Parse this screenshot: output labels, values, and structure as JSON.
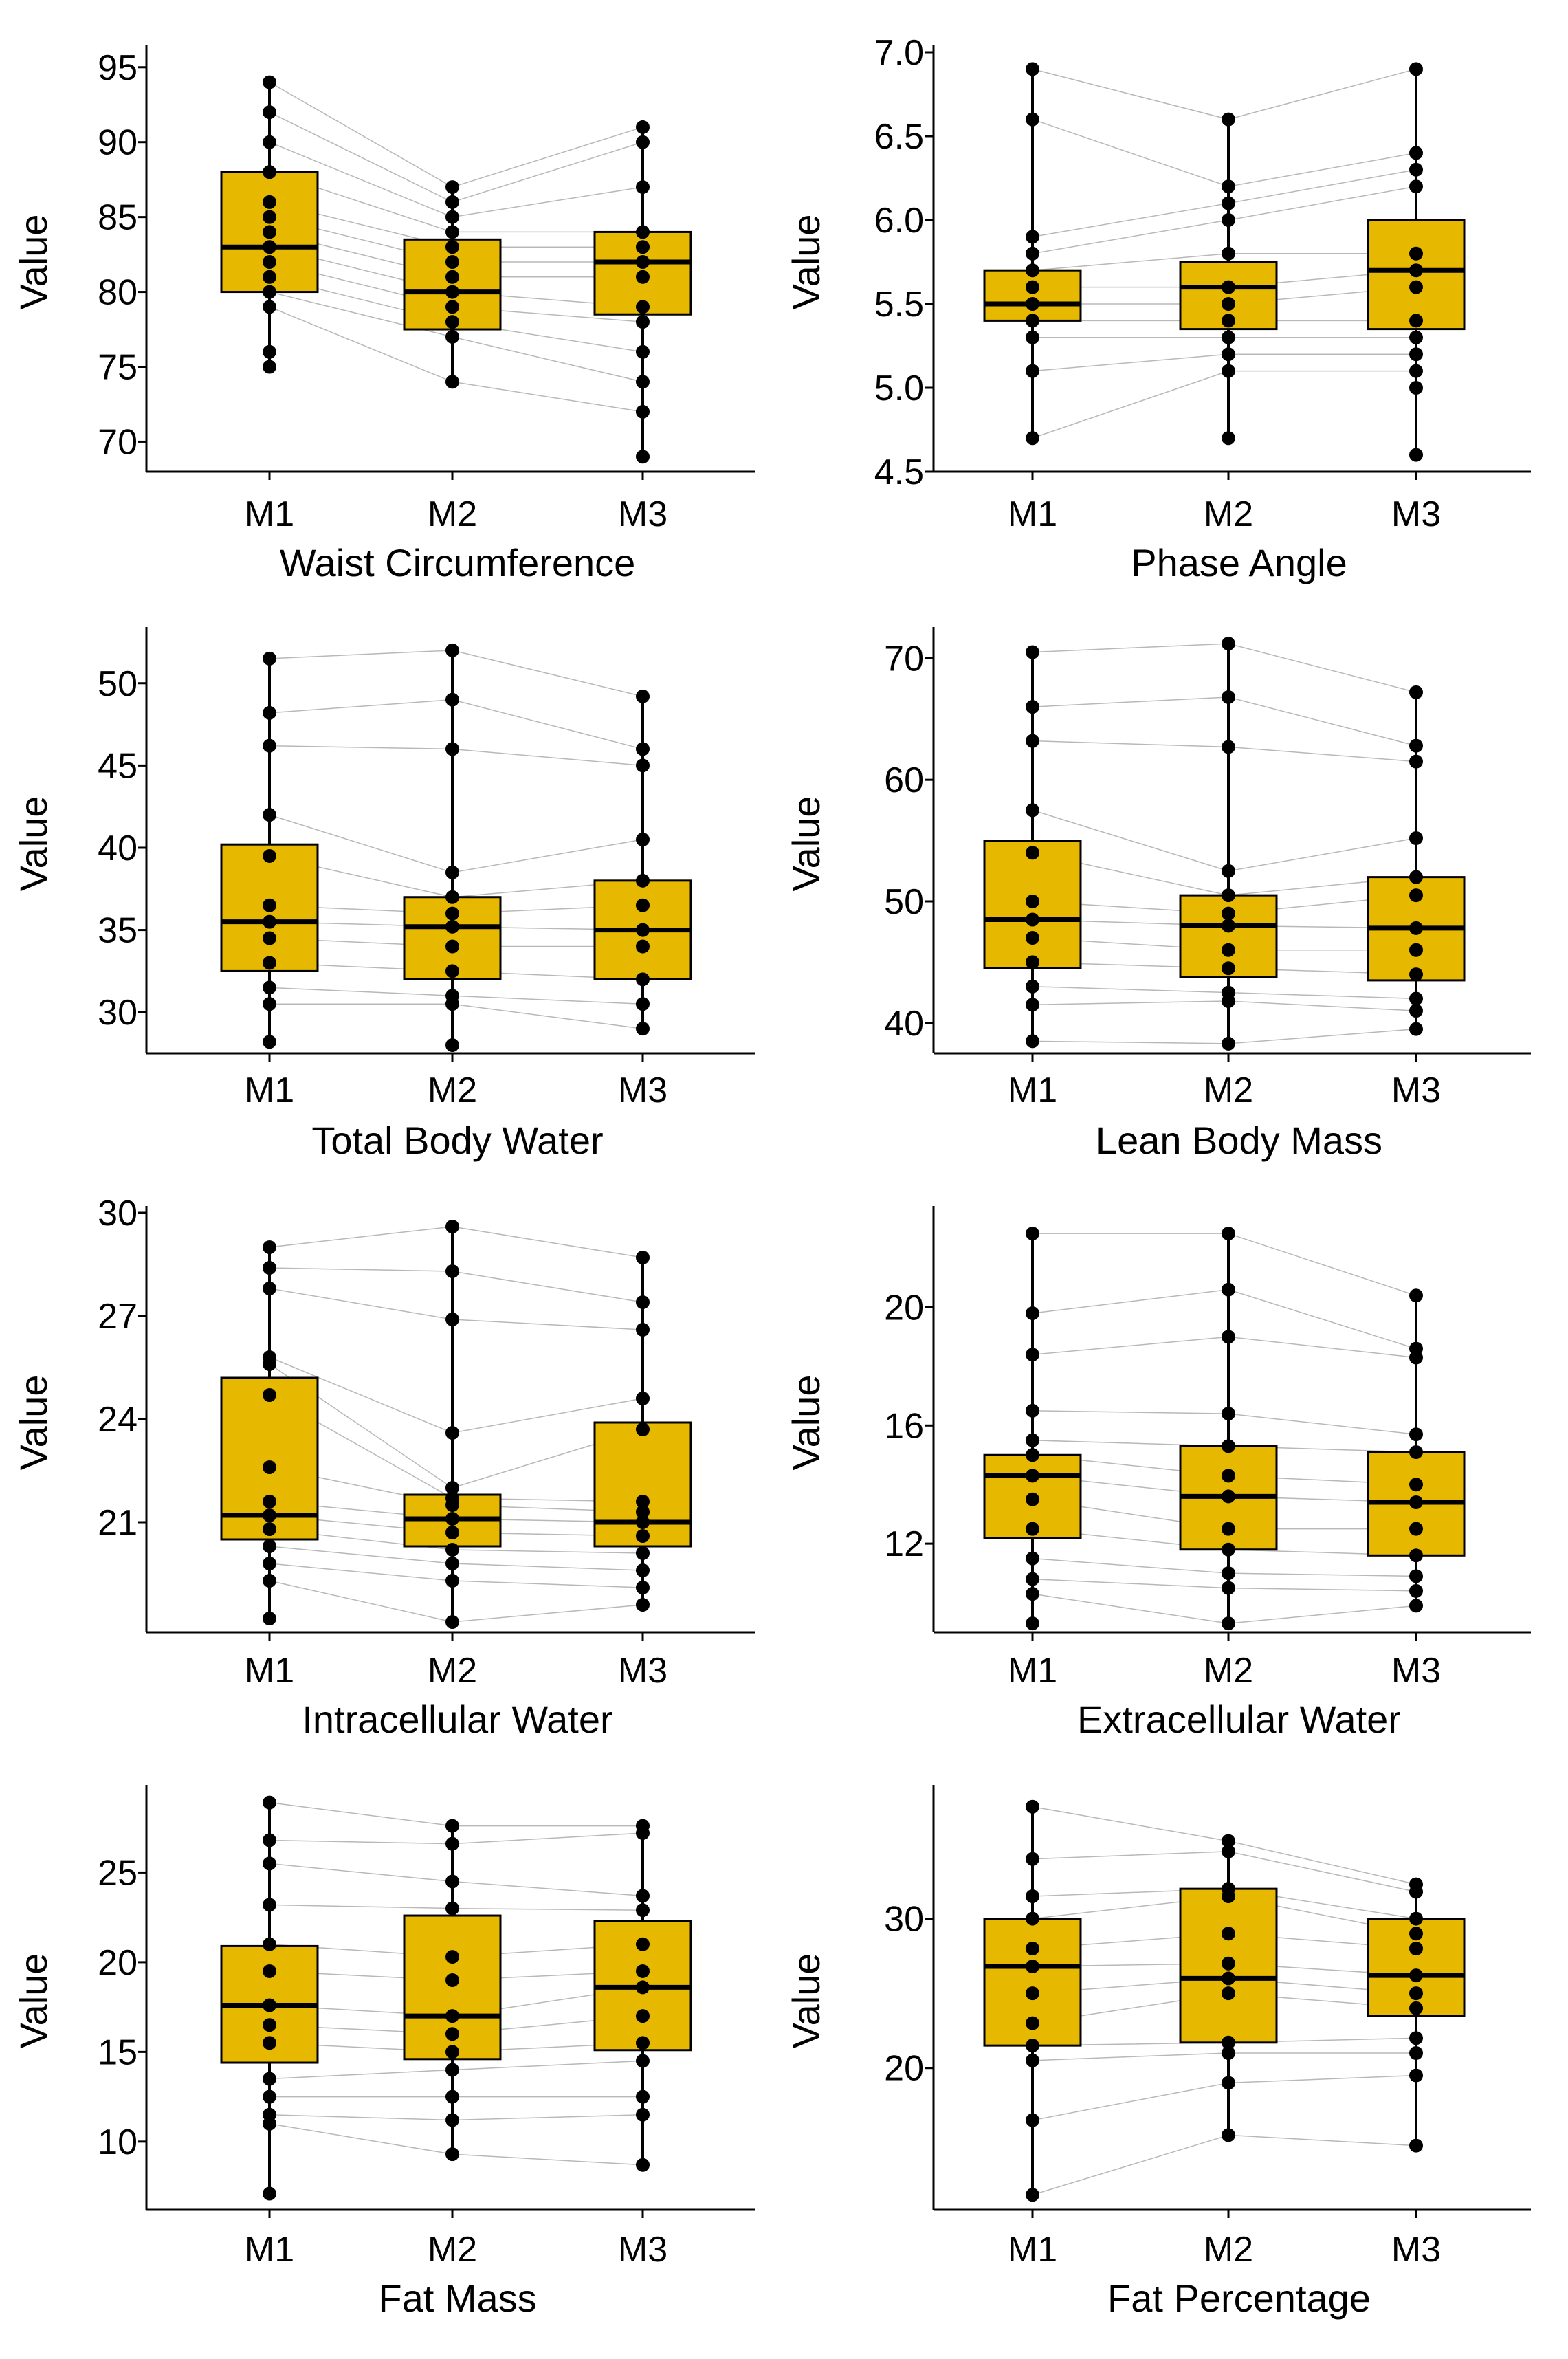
{
  "figure": {
    "layout": "4 rows x 2 columns of box plots with paired lines",
    "box_fill": "#E7B800",
    "box_stroke": "#000000",
    "point_color": "#000000",
    "pair_line_color": "#9a9a9a"
  },
  "chart_data": [
    {
      "type": "box",
      "title": "Waist Circumference",
      "xlabel": "Waist Circumference",
      "ylabel": "Value",
      "categories": [
        "M1",
        "M2",
        "M3"
      ],
      "ylim": [
        68,
        96
      ],
      "yticks": [
        70,
        75,
        80,
        85,
        90,
        95
      ],
      "ytick_labels": [
        "70",
        "75",
        "80",
        "85",
        "90",
        "95"
      ],
      "boxes": [
        {
          "group": "M1",
          "whisker_low": 75,
          "q1": 80,
          "median": 83,
          "q3": 88,
          "whisker_high": 94
        },
        {
          "group": "M2",
          "whisker_low": 74,
          "q1": 77.5,
          "median": 80,
          "q3": 83.5,
          "whisker_high": 87
        },
        {
          "group": "M3",
          "whisker_low": 69,
          "q1": 78.5,
          "median": 82,
          "q3": 84,
          "whisker_high": 91
        }
      ],
      "points": {
        "M1": [
          94,
          92,
          90,
          88,
          86,
          85,
          84,
          83,
          82,
          81,
          80,
          79,
          76,
          75
        ],
        "M2": [
          87,
          86,
          85,
          84,
          83,
          82,
          81,
          80,
          79,
          78,
          77,
          74
        ],
        "M3": [
          91,
          90,
          87,
          84,
          83,
          82,
          81,
          79,
          78,
          76,
          74,
          72,
          69
        ]
      }
    },
    {
      "type": "box",
      "title": "Phase Angle",
      "xlabel": "Phase Angle",
      "ylabel": "Value",
      "categories": [
        "M1",
        "M2",
        "M3"
      ],
      "ylim": [
        4.5,
        7.0
      ],
      "yticks": [
        4.5,
        5.0,
        5.5,
        6.0,
        6.5,
        7.0
      ],
      "ytick_labels": [
        "4.5",
        "5.0",
        "5.5",
        "6.0",
        "6.5",
        "7.0"
      ],
      "boxes": [
        {
          "group": "M1",
          "whisker_low": 4.7,
          "q1": 5.4,
          "median": 5.5,
          "q3": 5.7,
          "whisker_high": 6.9
        },
        {
          "group": "M2",
          "whisker_low": 4.7,
          "q1": 5.35,
          "median": 5.6,
          "q3": 5.75,
          "whisker_high": 6.6
        },
        {
          "group": "M3",
          "whisker_low": 4.6,
          "q1": 5.35,
          "median": 5.7,
          "q3": 6.0,
          "whisker_high": 6.9
        }
      ],
      "points": {
        "M1": [
          6.9,
          6.6,
          5.9,
          5.8,
          5.7,
          5.6,
          5.5,
          5.4,
          5.3,
          5.1,
          4.7
        ],
        "M2": [
          6.6,
          6.2,
          6.1,
          6.0,
          5.8,
          5.6,
          5.5,
          5.4,
          5.3,
          5.2,
          5.1,
          4.7
        ],
        "M3": [
          6.9,
          6.4,
          6.3,
          6.2,
          5.8,
          5.7,
          5.6,
          5.4,
          5.3,
          5.2,
          5.1,
          5.0,
          4.6
        ]
      }
    },
    {
      "type": "box",
      "title": "Total Body Water",
      "xlabel": "Total Body Water",
      "ylabel": "Value",
      "categories": [
        "M1",
        "M2",
        "M3"
      ],
      "ylim": [
        27.5,
        53
      ],
      "yticks": [
        30,
        35,
        40,
        45,
        50
      ],
      "ytick_labels": [
        "30",
        "35",
        "40",
        "45",
        "50"
      ],
      "boxes": [
        {
          "group": "M1",
          "whisker_low": 28.2,
          "q1": 32.5,
          "median": 35.5,
          "q3": 40.2,
          "whisker_high": 51.5
        },
        {
          "group": "M2",
          "whisker_low": 28.0,
          "q1": 32.0,
          "median": 35.2,
          "q3": 37.0,
          "whisker_high": 52.0
        },
        {
          "group": "M3",
          "whisker_low": 29.0,
          "q1": 32.0,
          "median": 35.0,
          "q3": 38.0,
          "whisker_high": 49.2
        }
      ],
      "points": {
        "M1": [
          51.5,
          48.2,
          46.2,
          42.0,
          39.5,
          36.5,
          35.5,
          34.5,
          33.0,
          31.5,
          30.5,
          28.2
        ],
        "M2": [
          52.0,
          49.0,
          46.0,
          38.5,
          37.0,
          36.0,
          35.2,
          34.0,
          32.5,
          31.0,
          30.5,
          28.0
        ],
        "M3": [
          49.2,
          46.0,
          45.0,
          40.5,
          38.0,
          36.5,
          35.0,
          34.0,
          32.0,
          30.5,
          29.0
        ]
      }
    },
    {
      "type": "box",
      "title": "Lean Body Mass",
      "xlabel": "Lean Body Mass",
      "ylabel": "Value",
      "categories": [
        "M1",
        "M2",
        "M3"
      ],
      "ylim": [
        37.5,
        72
      ],
      "yticks": [
        40,
        50,
        60,
        70
      ],
      "ytick_labels": [
        "40",
        "50",
        "60",
        "70"
      ],
      "boxes": [
        {
          "group": "M1",
          "whisker_low": 38.5,
          "q1": 44.5,
          "median": 48.5,
          "q3": 55.0,
          "whisker_high": 70.5
        },
        {
          "group": "M2",
          "whisker_low": 38.3,
          "q1": 43.8,
          "median": 48.0,
          "q3": 50.5,
          "whisker_high": 71.2
        },
        {
          "group": "M3",
          "whisker_low": 39.5,
          "q1": 43.5,
          "median": 47.8,
          "q3": 52.0,
          "whisker_high": 67.2
        }
      ],
      "points": {
        "M1": [
          70.5,
          66.0,
          63.2,
          57.5,
          54.0,
          50.0,
          48.5,
          47.0,
          45.0,
          43.0,
          41.5,
          38.5
        ],
        "M2": [
          71.2,
          66.8,
          62.7,
          52.5,
          50.5,
          49.0,
          48.0,
          46.0,
          44.5,
          42.5,
          41.8,
          38.3
        ],
        "M3": [
          67.2,
          62.8,
          61.5,
          55.2,
          52.0,
          50.5,
          47.8,
          46.0,
          44.0,
          42.0,
          41.0,
          39.5
        ]
      }
    },
    {
      "type": "box",
      "title": "Intracellular Water",
      "xlabel": "Intracellular Water",
      "ylabel": "Value",
      "categories": [
        "M1",
        "M2",
        "M3"
      ],
      "ylim": [
        17.8,
        30
      ],
      "yticks": [
        21,
        24,
        27,
        30
      ],
      "ytick_labels": [
        "21",
        "24",
        "27",
        "30"
      ],
      "boxes": [
        {
          "group": "M1",
          "whisker_low": 18.2,
          "q1": 20.5,
          "median": 21.2,
          "q3": 25.2,
          "whisker_high": 29.0
        },
        {
          "group": "M2",
          "whisker_low": 18.1,
          "q1": 20.3,
          "median": 21.1,
          "q3": 21.8,
          "whisker_high": 29.6
        },
        {
          "group": "M3",
          "whisker_low": 18.6,
          "q1": 20.3,
          "median": 21.0,
          "q3": 23.9,
          "whisker_high": 28.7
        }
      ],
      "points": {
        "M1": [
          29.0,
          28.4,
          27.8,
          25.8,
          25.6,
          24.7,
          22.6,
          21.6,
          21.2,
          20.8,
          20.3,
          19.8,
          19.3,
          18.2
        ],
        "M2": [
          29.6,
          28.3,
          26.9,
          23.6,
          22.0,
          21.7,
          21.5,
          21.1,
          20.7,
          20.2,
          19.8,
          19.3,
          18.1
        ],
        "M3": [
          28.7,
          27.4,
          26.6,
          24.6,
          23.7,
          21.6,
          21.3,
          21.0,
          20.6,
          20.1,
          19.6,
          19.1,
          18.6
        ]
      }
    },
    {
      "type": "box",
      "title": "Extracellular Water",
      "xlabel": "Extracellular Water",
      "ylabel": "Value",
      "categories": [
        "M1",
        "M2",
        "M3"
      ],
      "ylim": [
        9.0,
        23.2
      ],
      "yticks": [
        12,
        16,
        20
      ],
      "ytick_labels": [
        "12",
        "16",
        "20"
      ],
      "boxes": [
        {
          "group": "M1",
          "whisker_low": 9.3,
          "q1": 12.2,
          "median": 14.3,
          "q3": 15.0,
          "whisker_high": 22.5
        },
        {
          "group": "M2",
          "whisker_low": 9.3,
          "q1": 11.8,
          "median": 13.6,
          "q3": 15.3,
          "whisker_high": 22.5
        },
        {
          "group": "M3",
          "whisker_low": 9.9,
          "q1": 11.6,
          "median": 13.4,
          "q3": 15.1,
          "whisker_high": 20.4
        }
      ],
      "points": {
        "M1": [
          22.5,
          19.8,
          18.4,
          16.5,
          15.5,
          15.0,
          14.3,
          13.5,
          12.5,
          11.5,
          10.8,
          10.3,
          9.3
        ],
        "M2": [
          22.5,
          20.6,
          19.0,
          16.4,
          15.3,
          14.3,
          13.6,
          12.5,
          11.8,
          11.0,
          10.5,
          9.3
        ],
        "M3": [
          20.4,
          18.6,
          18.3,
          15.7,
          15.1,
          14.0,
          13.4,
          12.5,
          11.6,
          10.9,
          10.4,
          9.9
        ]
      }
    },
    {
      "type": "box",
      "title": "Fat Mass",
      "xlabel": "Fat Mass",
      "ylabel": "Value",
      "categories": [
        "M1",
        "M2",
        "M3"
      ],
      "ylim": [
        6.2,
        29.5
      ],
      "yticks": [
        10,
        15,
        20,
        25
      ],
      "ytick_labels": [
        "10",
        "15",
        "20",
        "25"
      ],
      "boxes": [
        {
          "group": "M1",
          "whisker_low": 7.1,
          "q1": 14.4,
          "median": 17.6,
          "q3": 20.9,
          "whisker_high": 28.9
        },
        {
          "group": "M2",
          "whisker_low": 9.3,
          "q1": 14.6,
          "median": 17.0,
          "q3": 22.6,
          "whisker_high": 27.6
        },
        {
          "group": "M3",
          "whisker_low": 8.7,
          "q1": 15.1,
          "median": 18.6,
          "q3": 22.3,
          "whisker_high": 27.6
        }
      ],
      "points": {
        "M1": [
          28.9,
          26.8,
          25.5,
          23.2,
          21.0,
          19.5,
          17.6,
          16.5,
          15.5,
          13.5,
          12.5,
          11.5,
          11.0,
          7.1
        ],
        "M2": [
          27.6,
          26.6,
          24.5,
          23.0,
          20.3,
          19.0,
          17.0,
          16.0,
          15.0,
          14.0,
          12.5,
          11.2,
          9.3
        ],
        "M3": [
          27.6,
          27.2,
          23.7,
          22.9,
          21.0,
          19.5,
          18.6,
          17.0,
          15.5,
          14.5,
          12.5,
          11.5,
          8.7
        ]
      }
    },
    {
      "type": "box",
      "title": "Fat Percentage",
      "xlabel": "Fat Percentage",
      "ylabel": "Value",
      "categories": [
        "M1",
        "M2",
        "M3"
      ],
      "ylim": [
        10.5,
        38.5
      ],
      "yticks": [
        20,
        30
      ],
      "ytick_labels": [
        "20",
        "30"
      ],
      "boxes": [
        {
          "group": "M1",
          "whisker_low": 11.5,
          "q1": 21.5,
          "median": 26.8,
          "q3": 30.0,
          "whisker_high": 37.5
        },
        {
          "group": "M2",
          "whisker_low": 15.5,
          "q1": 21.7,
          "median": 26.0,
          "q3": 32.0,
          "whisker_high": 35.2
        },
        {
          "group": "M3",
          "whisker_low": 14.8,
          "q1": 23.5,
          "median": 26.2,
          "q3": 30.0,
          "whisker_high": 32.3
        }
      ],
      "points": {
        "M1": [
          37.5,
          34.0,
          31.5,
          30.0,
          28.0,
          26.8,
          25.0,
          23.0,
          21.5,
          20.5,
          16.5,
          11.5
        ],
        "M2": [
          35.2,
          34.5,
          32.0,
          31.5,
          29.0,
          27.0,
          26.0,
          25.0,
          21.7,
          21.0,
          19.0,
          15.5
        ],
        "M3": [
          32.3,
          31.8,
          30.0,
          29.0,
          28.0,
          26.2,
          25.0,
          24.0,
          22.0,
          21.0,
          19.5,
          14.8
        ]
      }
    }
  ]
}
